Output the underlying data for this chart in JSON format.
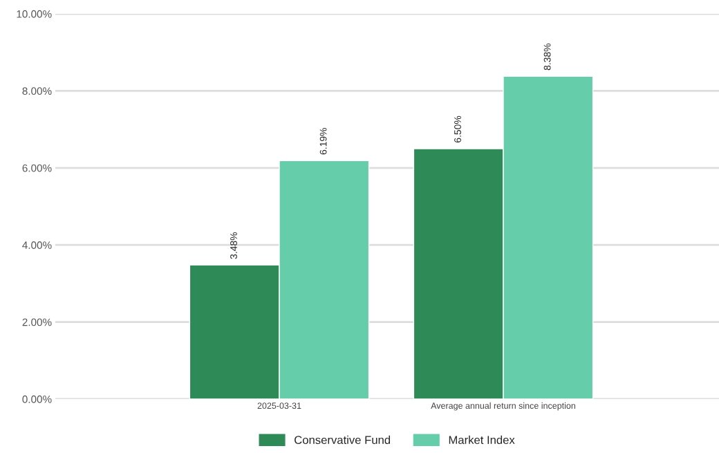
{
  "chart_data": {
    "type": "bar",
    "categories": [
      "2025-03-31",
      "Average annual return since inception"
    ],
    "series": [
      {
        "name": "Conservative Fund",
        "color": "#2e8b57",
        "values": [
          3.48,
          6.5
        ]
      },
      {
        "name": "Market Index",
        "color": "#66cdaa",
        "values": [
          6.19,
          8.38
        ]
      }
    ],
    "ylim": [
      0,
      10
    ],
    "yticks": [
      {
        "value": 0,
        "label": "0.00%"
      },
      {
        "value": 2,
        "label": "2.00%"
      },
      {
        "value": 4,
        "label": "4.00%"
      },
      {
        "value": 6,
        "label": "6.00%"
      },
      {
        "value": 8,
        "label": "8.00%"
      },
      {
        "value": 10,
        "label": "10.00%"
      }
    ],
    "value_labels": [
      [
        "3.48%",
        "6.50%"
      ],
      [
        "6.19%",
        "8.38%"
      ]
    ],
    "grid": "y",
    "legend": "bottom"
  }
}
